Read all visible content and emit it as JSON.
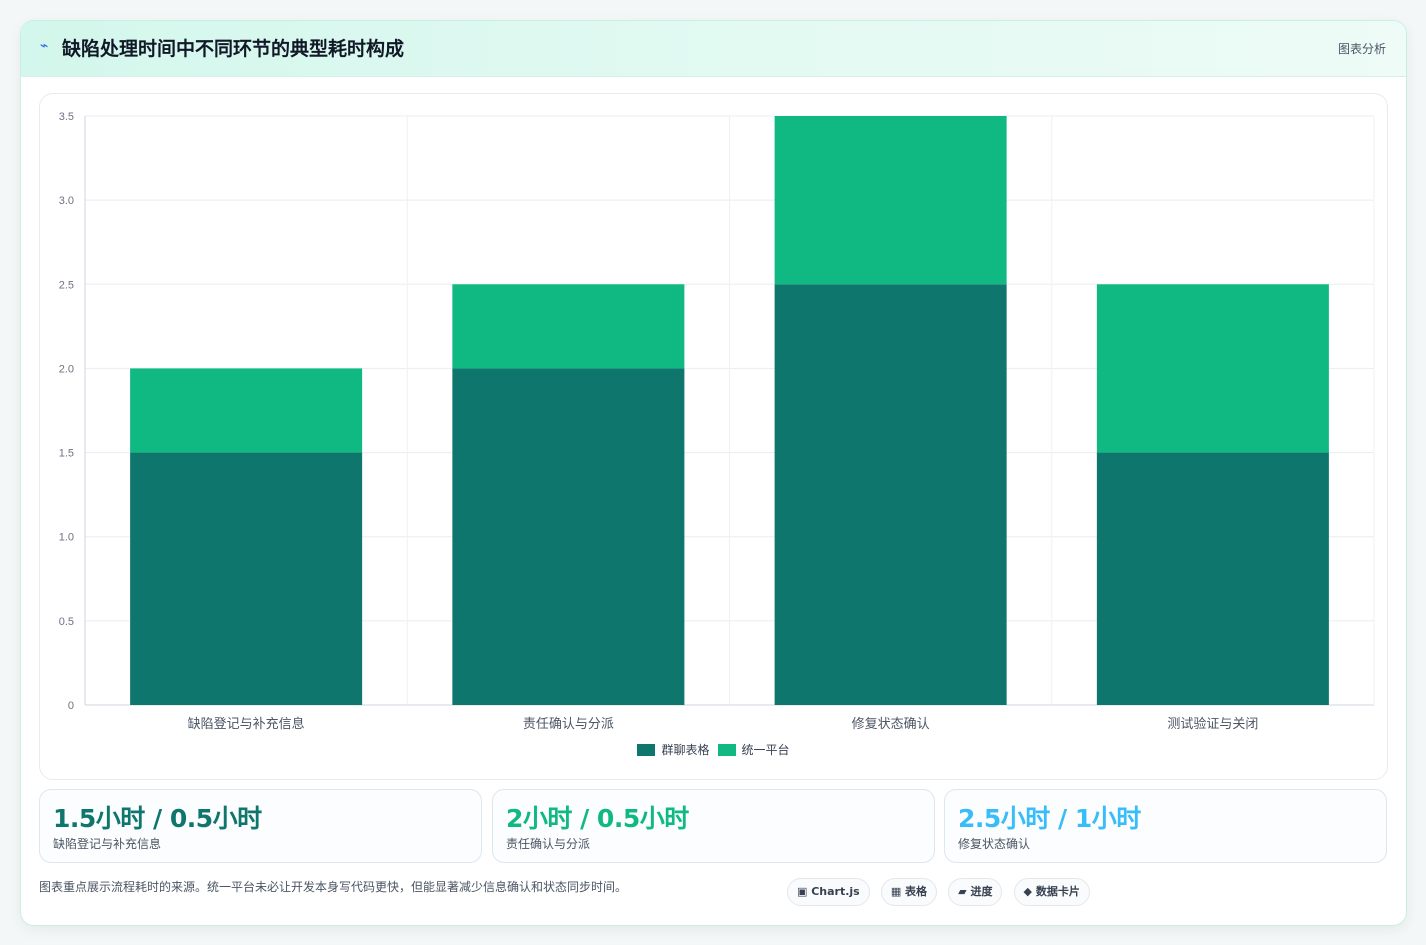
{
  "header": {
    "icon": "⌁",
    "title": "缺陷处理时间中不同环节的典型耗时构成",
    "tag": "图表分析"
  },
  "chart_data": {
    "type": "bar",
    "stacked": true,
    "categories": [
      "缺陷登记与补充信息",
      "责任确认与分派",
      "修复状态确认",
      "测试验证与关闭"
    ],
    "series": [
      {
        "name": "群聊表格",
        "values": [
          1.5,
          2.0,
          2.5,
          1.5
        ],
        "color": "#0f766e"
      },
      {
        "name": "统一平台",
        "values": [
          0.5,
          0.5,
          1.0,
          1.0
        ],
        "color": "#10b981"
      }
    ],
    "ylim": [
      0,
      3.5
    ],
    "yticks": [
      "0",
      "0.5",
      "1.0",
      "1.5",
      "2.0",
      "2.5",
      "3.0",
      "3.5"
    ],
    "legend": "bottom",
    "grid": true
  },
  "stats": [
    {
      "value": "1.5小时 / 0.5小时",
      "label": "缺陷登记与补充信息",
      "color": "#0f766e"
    },
    {
      "value": "2小时 / 0.5小时",
      "label": "责任确认与分派",
      "color": "#10b981"
    },
    {
      "value": "2.5小时 / 1小时",
      "label": "修复状态确认",
      "color": "#38bdf8"
    }
  ],
  "footnote": "图表重点展示流程耗时的来源。统一平台未必让开发本身写代码更快，但能显著减少信息确认和状态同步时间。",
  "chips": [
    "▣ Chart.js",
    "▦ 表格",
    "▰ 进度",
    "◆ 数据卡片"
  ]
}
